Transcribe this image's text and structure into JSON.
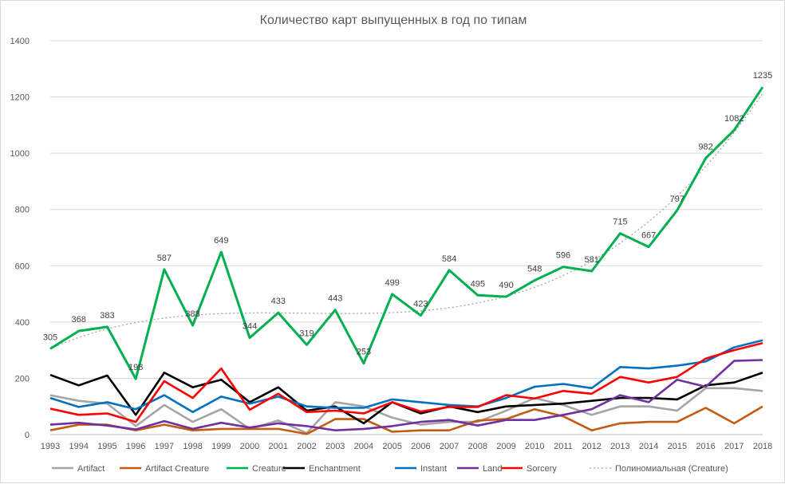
{
  "chart_data": {
    "type": "line",
    "title": "Количество карт выпущенных в год по типам",
    "xlabel": "",
    "ylabel": "",
    "ylim": [
      0,
      1400
    ],
    "yticks": [
      0,
      200,
      400,
      600,
      800,
      1000,
      1200,
      1400
    ],
    "grid": true,
    "legend": "bottom",
    "x": [
      1993,
      1994,
      1995,
      1996,
      1997,
      1998,
      1999,
      2000,
      2001,
      2002,
      2003,
      2004,
      2005,
      2006,
      2007,
      2008,
      2009,
      2010,
      2011,
      2012,
      2013,
      2014,
      2015,
      2016,
      2017,
      2018
    ],
    "series": [
      {
        "name": "Artifact",
        "color": "#a5a5a5",
        "values": [
          140,
          120,
          110,
          30,
          105,
          45,
          90,
          20,
          50,
          5,
          115,
          100,
          60,
          35,
          45,
          45,
          85,
          130,
          105,
          70,
          100,
          100,
          85,
          165,
          165,
          155
        ]
      },
      {
        "name": "Artifact Creature",
        "color": "#c55a11",
        "values": [
          15,
          35,
          35,
          15,
          35,
          15,
          20,
          20,
          20,
          2,
          55,
          55,
          10,
          15,
          15,
          50,
          55,
          90,
          65,
          15,
          40,
          45,
          45,
          95,
          40,
          100
        ]
      },
      {
        "name": "Creature",
        "color": "#00b050",
        "values": [
          305,
          368,
          383,
          198,
          587,
          388,
          649,
          344,
          433,
          319,
          443,
          253,
          499,
          423,
          584,
          495,
          490,
          548,
          596,
          581,
          715,
          667,
          797,
          982,
          1082,
          1235
        ],
        "labels": [
          "305",
          "368",
          "383",
          "198",
          "587",
          "388",
          "649",
          "344",
          "433",
          "319",
          "443",
          "253",
          "499",
          "423",
          "584",
          "495",
          "490",
          "548",
          "596",
          "581",
          "715",
          "667",
          "797",
          "982",
          "1082",
          "1235"
        ]
      },
      {
        "name": "Enchantment",
        "color": "#000000",
        "values": [
          212,
          175,
          210,
          70,
          220,
          168,
          195,
          115,
          168,
          85,
          100,
          40,
          115,
          75,
          100,
          80,
          100,
          105,
          110,
          120,
          130,
          130,
          125,
          175,
          185,
          220
        ]
      },
      {
        "name": "Instant",
        "color": "#0070c0",
        "values": [
          130,
          98,
          115,
          90,
          140,
          80,
          135,
          110,
          135,
          100,
          95,
          95,
          125,
          115,
          105,
          100,
          130,
          170,
          180,
          165,
          240,
          235,
          245,
          260,
          310,
          335
        ]
      },
      {
        "name": "Land",
        "color": "#7030a0",
        "values": [
          35,
          42,
          32,
          18,
          48,
          20,
          42,
          25,
          40,
          30,
          15,
          20,
          30,
          45,
          52,
          32,
          52,
          52,
          70,
          90,
          140,
          115,
          195,
          170,
          262,
          265
        ]
      },
      {
        "name": "Sorcery",
        "color": "#ff0000",
        "values": [
          92,
          70,
          75,
          45,
          190,
          130,
          235,
          88,
          145,
          80,
          85,
          75,
          115,
          82,
          98,
          98,
          140,
          128,
          155,
          145,
          205,
          185,
          205,
          270,
          300,
          325
        ]
      }
    ],
    "trendline": {
      "name": "Полиномиальная (Creature)",
      "of": "Creature",
      "style": "dotted",
      "color": "#a5a5a5"
    }
  }
}
